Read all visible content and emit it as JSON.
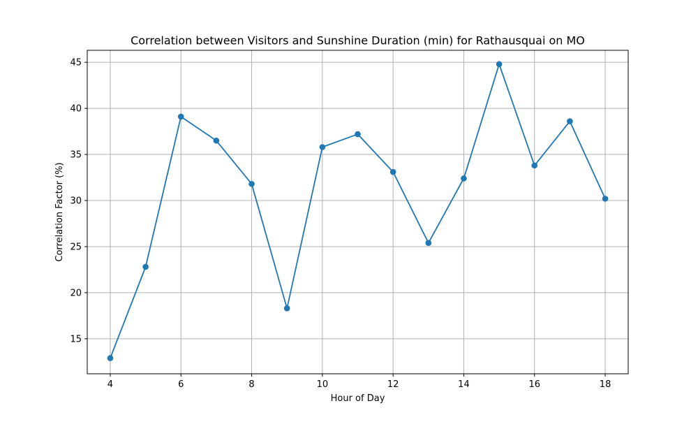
{
  "chart_data": {
    "type": "line",
    "title": "Correlation between Visitors and Sunshine Duration (min) for Rathausquai on MO",
    "xlabel": "Hour of Day",
    "ylabel": "Correlation Factor (%)",
    "xlim": [
      3.35,
      18.65
    ],
    "ylim": [
      11.2,
      46.3
    ],
    "xticks": [
      4,
      6,
      8,
      10,
      12,
      14,
      16,
      18
    ],
    "yticks": [
      15,
      20,
      25,
      30,
      35,
      40,
      45
    ],
    "grid": true,
    "line_color": "#1f77b4",
    "series": [
      {
        "x": [
          4,
          5,
          6,
          7,
          8,
          9,
          10,
          11,
          12,
          13,
          14,
          15,
          16,
          17,
          18
        ],
        "values": [
          12.9,
          22.8,
          39.1,
          36.5,
          31.8,
          18.3,
          35.8,
          37.2,
          33.1,
          25.4,
          32.4,
          44.8,
          33.8,
          38.6,
          30.2
        ]
      }
    ]
  }
}
